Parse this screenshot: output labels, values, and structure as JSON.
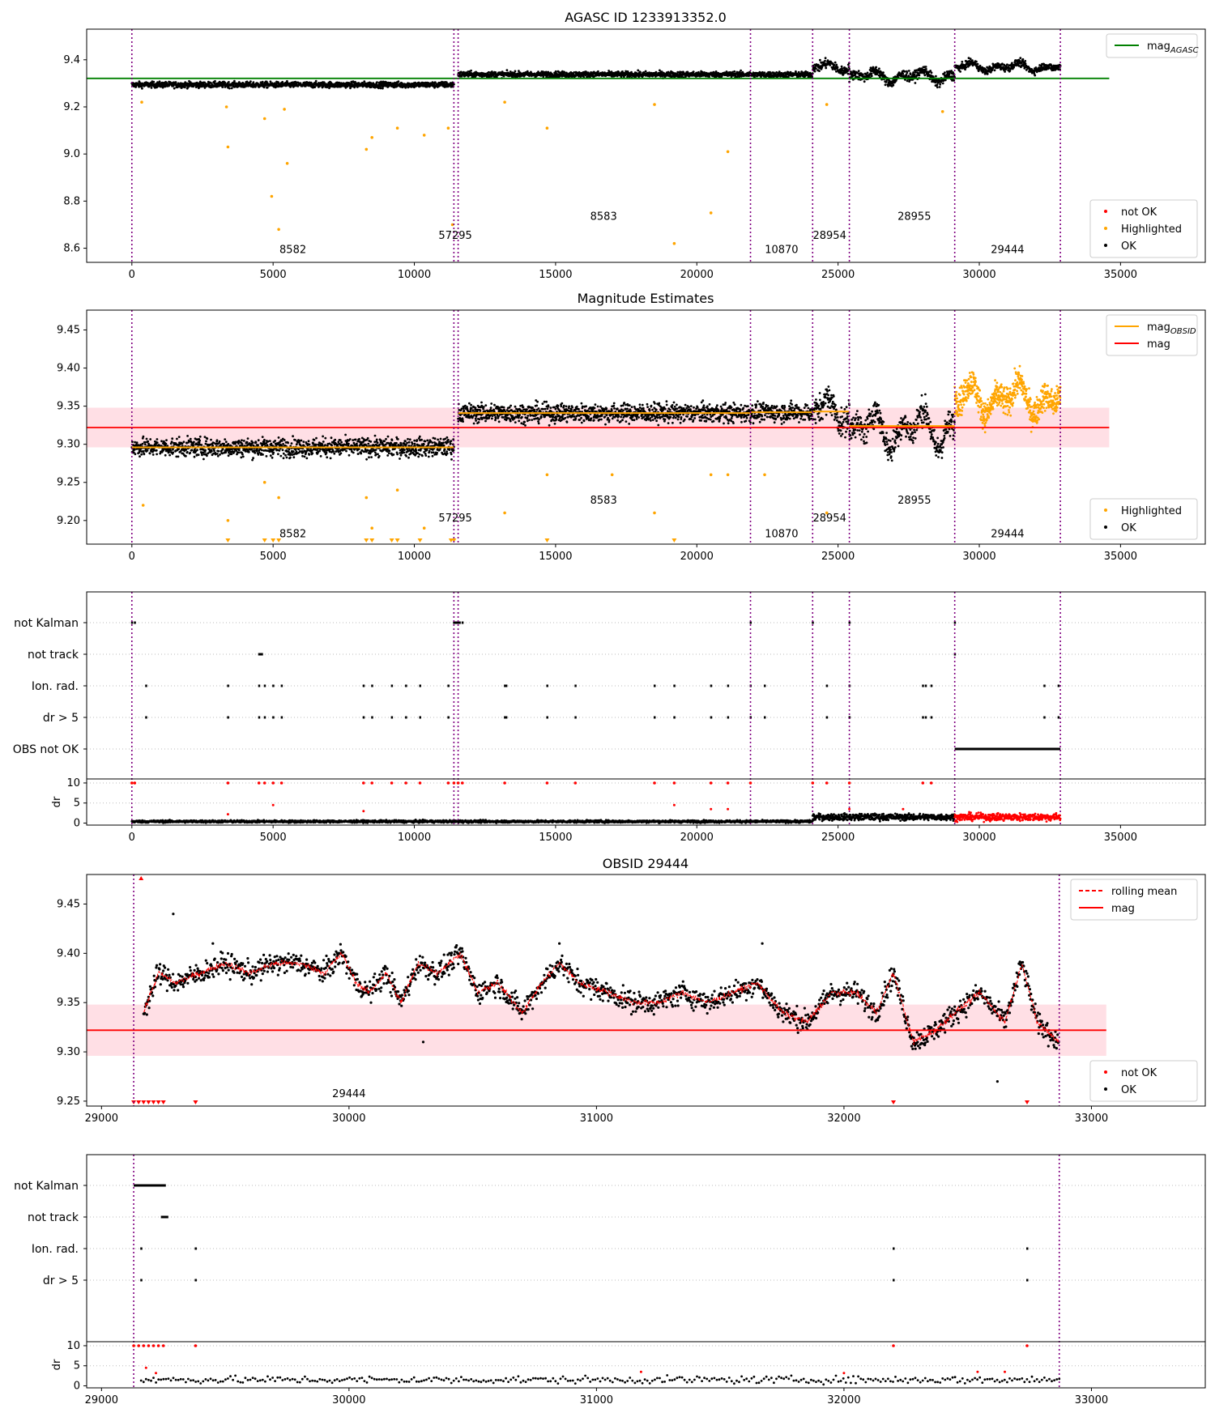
{
  "colors": {
    "ok": "#000000",
    "not_ok": "#ff0000",
    "highlighted": "#ffa500",
    "obsid_boundary": "#800080",
    "mag_agasc": "#008000",
    "mag": "#ff0000",
    "mag_obsid": "#ffa500",
    "band": "#ffc0cb"
  },
  "chart_data": [
    {
      "id": "p1",
      "type": "scatter",
      "title": "AGASC ID 1233913352.0",
      "xlim": [
        -1600,
        38000
      ],
      "ylim": [
        8.54,
        9.53
      ],
      "xticks": [
        0,
        5000,
        10000,
        15000,
        20000,
        25000,
        30000,
        35000
      ],
      "yticks": [
        8.6,
        8.8,
        9.0,
        9.2,
        9.4
      ],
      "ytick_decimals": 1,
      "vlines": [
        0,
        11400,
        11550,
        21900,
        24100,
        25400,
        29130,
        32870
      ],
      "hlines": [
        {
          "y": 9.321,
          "x": [
            -1600,
            34600
          ],
          "color": "#008000"
        }
      ],
      "segments": [
        {
          "x": [
            0,
            11400
          ],
          "center": 9.294,
          "spread": 0.012,
          "wave": 0.0
        },
        {
          "x": [
            11550,
            21900
          ],
          "center": 9.338,
          "spread": 0.012,
          "wave": 0.0
        },
        {
          "x": [
            21900,
            24100
          ],
          "center": 9.337,
          "spread": 0.012,
          "wave": 0.0
        },
        {
          "x": [
            24100,
            25400
          ],
          "center": 9.37,
          "spread": 0.02,
          "wave": 0.02
        },
        {
          "x": [
            25400,
            29130
          ],
          "center": 9.33,
          "spread": 0.02,
          "wave": 0.03
        },
        {
          "x": [
            29130,
            32870
          ],
          "center": 9.37,
          "spread": 0.015,
          "wave": 0.02
        }
      ],
      "highlighted_points": [
        [
          350,
          9.22
        ],
        [
          3350,
          9.2
        ],
        [
          3400,
          9.03
        ],
        [
          4700,
          9.15
        ],
        [
          4950,
          8.82
        ],
        [
          5200,
          8.68
        ],
        [
          5400,
          9.19
        ],
        [
          5500,
          8.96
        ],
        [
          8300,
          9.02
        ],
        [
          8500,
          9.07
        ],
        [
          9400,
          9.11
        ],
        [
          10350,
          9.08
        ],
        [
          11200,
          9.11
        ],
        [
          11350,
          8.7
        ],
        [
          13200,
          9.22
        ],
        [
          14700,
          9.11
        ],
        [
          18500,
          9.21
        ],
        [
          19200,
          8.62
        ],
        [
          20500,
          8.75
        ],
        [
          21100,
          9.01
        ],
        [
          24600,
          9.21
        ],
        [
          28700,
          9.18
        ]
      ],
      "obsid_labels": [
        {
          "text": "8582",
          "x": 5700,
          "y": 8.58
        },
        {
          "text": "57295",
          "x": 11450,
          "y": 8.64
        },
        {
          "text": "8583",
          "x": 16700,
          "y": 8.72
        },
        {
          "text": "10870",
          "x": 23000,
          "y": 8.58
        },
        {
          "text": "28954",
          "x": 24700,
          "y": 8.64
        },
        {
          "text": "28955",
          "x": 27700,
          "y": 8.72
        },
        {
          "text": "29444",
          "x": 31000,
          "y": 8.58
        }
      ],
      "legend_lines": [
        {
          "label": "mag",
          "sub": "AGASC",
          "color": "#008000"
        }
      ],
      "legend_points": [
        {
          "label": "not OK",
          "color": "#ff0000"
        },
        {
          "label": "Highlighted",
          "color": "#ffa500"
        },
        {
          "label": "OK",
          "color": "#000000"
        }
      ]
    },
    {
      "id": "p2",
      "type": "scatter",
      "title": "Magnitude Estimates",
      "xlim": [
        -1600,
        38000
      ],
      "ylim": [
        9.169,
        9.476
      ],
      "xticks": [
        0,
        5000,
        10000,
        15000,
        20000,
        25000,
        30000,
        35000
      ],
      "yticks": [
        9.2,
        9.25,
        9.3,
        9.35,
        9.4,
        9.45
      ],
      "ytick_decimals": 2,
      "vlines": [
        0,
        11400,
        11550,
        21900,
        24100,
        25400,
        29130,
        32870
      ],
      "band": {
        "y": [
          9.296,
          9.348
        ],
        "x": [
          -1600,
          34600
        ]
      },
      "hlines": [
        {
          "y": 9.322,
          "x": [
            -1600,
            34600
          ],
          "color": "#ff0000"
        }
      ],
      "obsid_mags": [
        {
          "x": [
            0,
            11400
          ],
          "y": 9.296
        },
        {
          "x": [
            11550,
            21900
          ],
          "y": 9.341
        },
        {
          "x": [
            21900,
            24100
          ],
          "y": 9.342
        },
        {
          "x": [
            24100,
            25400
          ],
          "y": 9.343
        },
        {
          "x": [
            25400,
            29130
          ],
          "y": 9.324
        }
      ],
      "segments": [
        {
          "x": [
            0,
            11400
          ],
          "center": 9.296,
          "spread": 0.012,
          "wave": 0.0
        },
        {
          "x": [
            11550,
            21900
          ],
          "center": 9.341,
          "spread": 0.012,
          "wave": 0.0
        },
        {
          "x": [
            21900,
            24100
          ],
          "center": 9.342,
          "spread": 0.012,
          "wave": 0.0
        },
        {
          "x": [
            24100,
            25400
          ],
          "center": 9.345,
          "spread": 0.018,
          "wave": 0.02
        },
        {
          "x": [
            25400,
            29130
          ],
          "center": 9.32,
          "spread": 0.018,
          "wave": 0.03
        }
      ],
      "highlighted_segment": {
        "x": [
          29130,
          32870
        ],
        "center": 9.36,
        "spread": 0.018,
        "wave": 0.025
      },
      "highlighted_points": [
        [
          400,
          9.22
        ],
        [
          3400,
          9.2
        ],
        [
          4700,
          9.25
        ],
        [
          5200,
          9.23
        ],
        [
          8300,
          9.23
        ],
        [
          8500,
          9.19
        ],
        [
          9400,
          9.24
        ],
        [
          10350,
          9.19
        ],
        [
          13200,
          9.21
        ],
        [
          14700,
          9.26
        ],
        [
          17000,
          9.26
        ],
        [
          18500,
          9.21
        ],
        [
          20500,
          9.26
        ],
        [
          21100,
          9.26
        ],
        [
          22400,
          9.26
        ],
        [
          24600,
          9.21
        ]
      ],
      "clipped_points": [
        3400,
        4700,
        5000,
        5200,
        8300,
        8500,
        9200,
        9400,
        10200,
        11300,
        11400,
        14700,
        19200
      ],
      "obsid_labels": [
        {
          "text": "8582",
          "x": 5700,
          "y": 9.178
        },
        {
          "text": "57295",
          "x": 11450,
          "y": 9.199
        },
        {
          "text": "8583",
          "x": 16700,
          "y": 9.222
        },
        {
          "text": "10870",
          "x": 23000,
          "y": 9.178
        },
        {
          "text": "28954",
          "x": 24700,
          "y": 9.199
        },
        {
          "text": "28955",
          "x": 27700,
          "y": 9.222
        },
        {
          "text": "29444",
          "x": 31000,
          "y": 9.178
        }
      ],
      "legend_lines": [
        {
          "label": "mag",
          "sub": "OBSID",
          "color": "#ffa500"
        },
        {
          "label": "mag",
          "sub": "",
          "color": "#ff0000"
        }
      ],
      "legend_points": [
        {
          "label": "Highlighted",
          "color": "#ffa500"
        },
        {
          "label": "OK",
          "color": "#000000"
        }
      ]
    },
    {
      "id": "p3",
      "type": "flags",
      "xlim": [
        -1600,
        38000
      ],
      "xticks": [
        0,
        5000,
        10000,
        15000,
        20000,
        25000,
        30000,
        35000
      ],
      "vlines": [
        0,
        11400,
        11550,
        21900,
        24100,
        25400,
        29130,
        32870
      ],
      "categories": [
        "not Kalman",
        "not track",
        "Ion. rad.",
        "dr > 5",
        "OBS not OK"
      ],
      "flag_points": {
        "not Kalman": [
          0,
          100,
          11400,
          11450,
          11500,
          11550,
          11600,
          11700,
          21900,
          24100,
          25400,
          29130
        ],
        "not track": [
          4500,
          4550,
          4600,
          29130
        ],
        "Ion. rad.": [
          500,
          3400,
          4500,
          4700,
          5000,
          5300,
          8200,
          8500,
          9200,
          9700,
          10200,
          11200,
          13200,
          13250,
          14700,
          15700,
          18500,
          19200,
          20500,
          21100,
          21900,
          22400,
          24600,
          25400,
          28000,
          28100,
          28300,
          32300,
          32800
        ],
        "dr > 5": [
          500,
          3400,
          4500,
          4700,
          5000,
          5300,
          8200,
          8500,
          9200,
          9700,
          10200,
          11200,
          13200,
          13250,
          14700,
          15700,
          18500,
          19200,
          20500,
          21100,
          21900,
          22400,
          24600,
          25400,
          28000,
          28100,
          28300,
          32300,
          32800
        ]
      },
      "obs_not_ok_range": [
        29130,
        32870
      ],
      "dr_ylim": [
        -0.5,
        11
      ],
      "dr_yticks": [
        0,
        5,
        10
      ],
      "dr_ylabel": "dr",
      "dr_segments": [
        {
          "x": [
            0,
            24100
          ],
          "center": 0.4,
          "spread": 0.3,
          "wave": 0.0,
          "red": false
        },
        {
          "x": [
            24100,
            29130
          ],
          "center": 1.5,
          "spread": 0.8,
          "wave": 0.0,
          "red": false
        },
        {
          "x": [
            29130,
            32870
          ],
          "center": 1.5,
          "spread": 0.9,
          "wave": 0.0,
          "red": true
        }
      ],
      "dr_red_top": [
        0,
        100,
        3400,
        4500,
        4700,
        5000,
        5300,
        8200,
        8500,
        9200,
        9700,
        10200,
        11200,
        11400,
        11550,
        11700,
        13200,
        14700,
        15700,
        18500,
        19200,
        20500,
        21100,
        21900,
        24100,
        24600,
        25400,
        28000,
        28300
      ],
      "dr_scatter": [
        [
          5000,
          4.5
        ],
        [
          8200,
          3
        ],
        [
          19200,
          4.5
        ],
        [
          20500,
          3.5
        ],
        [
          21100,
          3.5
        ],
        [
          25400,
          3.5
        ],
        [
          27300,
          3.5
        ],
        [
          3400,
          2.2
        ]
      ]
    },
    {
      "id": "p4",
      "type": "scatter",
      "title": "OBSID 29444",
      "xlim": [
        28940,
        33460
      ],
      "ylim": [
        9.245,
        9.48
      ],
      "xticks": [
        29000,
        30000,
        31000,
        32000,
        33000
      ],
      "yticks": [
        9.25,
        9.3,
        9.35,
        9.4,
        9.45
      ],
      "ytick_decimals": 2,
      "vlines": [
        29130,
        32870
      ],
      "band": {
        "y": [
          9.296,
          9.348
        ],
        "x": [
          28940,
          33060
        ]
      },
      "hlines": [
        {
          "y": 9.322,
          "x": [
            28940,
            33060
          ],
          "color": "#ff0000"
        }
      ],
      "obsid_series": [
        [
          29170,
          9.34
        ],
        [
          29230,
          9.38
        ],
        [
          29300,
          9.37
        ],
        [
          29400,
          9.38
        ],
        [
          29500,
          9.39
        ],
        [
          29600,
          9.38
        ],
        [
          29700,
          9.39
        ],
        [
          29800,
          9.39
        ],
        [
          29900,
          9.38
        ],
        [
          29970,
          9.4
        ],
        [
          30030,
          9.37
        ],
        [
          30080,
          9.36
        ],
        [
          30150,
          9.38
        ],
        [
          30210,
          9.35
        ],
        [
          30280,
          9.39
        ],
        [
          30360,
          9.38
        ],
        [
          30450,
          9.4
        ],
        [
          30520,
          9.36
        ],
        [
          30600,
          9.37
        ],
        [
          30700,
          9.34
        ],
        [
          30780,
          9.37
        ],
        [
          30850,
          9.39
        ],
        [
          30930,
          9.37
        ],
        [
          31050,
          9.36
        ],
        [
          31150,
          9.35
        ],
        [
          31250,
          9.35
        ],
        [
          31350,
          9.36
        ],
        [
          31450,
          9.35
        ],
        [
          31550,
          9.36
        ],
        [
          31650,
          9.37
        ],
        [
          31750,
          9.34
        ],
        [
          31850,
          9.33
        ],
        [
          31950,
          9.36
        ],
        [
          32050,
          9.36
        ],
        [
          32130,
          9.34
        ],
        [
          32200,
          9.38
        ],
        [
          32280,
          9.31
        ],
        [
          32360,
          9.32
        ],
        [
          32450,
          9.34
        ],
        [
          32550,
          9.36
        ],
        [
          32650,
          9.33
        ],
        [
          32720,
          9.39
        ],
        [
          32780,
          9.33
        ],
        [
          32870,
          9.31
        ]
      ],
      "outliers": [
        [
          29290,
          9.44
        ],
        [
          29450,
          9.41
        ],
        [
          30300,
          9.31
        ],
        [
          32620,
          9.27
        ],
        [
          31670,
          9.41
        ],
        [
          30850,
          9.41
        ]
      ],
      "notok_bottom": [
        29130,
        29150,
        29170,
        29190,
        29210,
        29230,
        29250,
        29380,
        32200,
        32740
      ],
      "notok_top": [
        29160
      ],
      "obsid_labels": [
        {
          "text": "29444",
          "x": 30000,
          "y": 9.254
        }
      ],
      "legend_lines": [
        {
          "label": "rolling mean",
          "sub": "",
          "color": "#ff0000",
          "dash": true
        },
        {
          "label": "mag",
          "sub": "",
          "color": "#ff0000"
        }
      ],
      "legend_points": [
        {
          "label": "not OK",
          "color": "#ff0000"
        },
        {
          "label": "OK",
          "color": "#000000"
        }
      ]
    },
    {
      "id": "p5",
      "type": "flags",
      "xlim": [
        28940,
        33460
      ],
      "xticks": [
        29000,
        30000,
        31000,
        32000,
        33000
      ],
      "vlines": [
        29130,
        32870
      ],
      "categories": [
        "not Kalman",
        "not track",
        "Ion. rad.",
        "dr > 5"
      ],
      "flag_segments": {
        "not Kalman": [
          29130,
          29260
        ],
        "not track": [
          29240,
          29270
        ]
      },
      "flag_points": {
        "Ion. rad.": [
          29160,
          29380,
          32200,
          32740
        ],
        "dr > 5": [
          29160,
          29380,
          32200,
          32740
        ]
      },
      "dr_ylim": [
        -0.5,
        11
      ],
      "dr_yticks": [
        0,
        5,
        10
      ],
      "dr_ylabel": "dr",
      "dr_segments": [
        {
          "x": [
            29160,
            32870
          ],
          "center": 1.5,
          "spread": 0.9,
          "wave": 0.0,
          "red": false
        }
      ],
      "dr_red_top": [
        29130,
        29150,
        29170,
        29190,
        29210,
        29230,
        29250,
        29380,
        32200,
        32740
      ],
      "dr_scatter": [
        [
          29180,
          4.5
        ],
        [
          29220,
          3.2
        ],
        [
          31180,
          3.5
        ],
        [
          32000,
          3.2
        ],
        [
          32540,
          3.5
        ],
        [
          32650,
          3.5
        ]
      ]
    }
  ]
}
